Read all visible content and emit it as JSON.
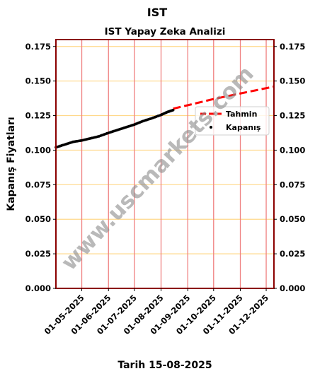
{
  "chart_data": {
    "type": "line",
    "suptitle": "IST",
    "title": "IST Yapay Zeka Analizi",
    "xlabel": "Tarih 15-08-2025",
    "ylabel": "Kapanış Fiyatları",
    "ylim": [
      0.0,
      0.18
    ],
    "yticks": [
      "0.000",
      "0.025",
      "0.050",
      "0.075",
      "0.100",
      "0.125",
      "0.150",
      "0.175"
    ],
    "xticks": [
      "01-05-2025",
      "01-06-2025",
      "01-07-2025",
      "01-08-2025",
      "01-09-2025",
      "01-10-2025",
      "01-11-2025",
      "01-12-2025"
    ],
    "xlim": [
      "2025-04-01",
      "2025-12-10"
    ],
    "grid": true,
    "legend_position": "right",
    "watermark": "www.uscmarkets.com",
    "colors": {
      "frame": "#8b0000",
      "grid_h": "#ffd88a",
      "grid_v": "#f08080",
      "forecast": "#ff0000",
      "actual": "#000000"
    },
    "series": [
      {
        "name": "Kapanış",
        "style": "dots",
        "points": [
          [
            "2025-04-01",
            0.102
          ],
          [
            "2025-04-11",
            0.104
          ],
          [
            "2025-04-21",
            0.106
          ],
          [
            "2025-05-01",
            0.107
          ],
          [
            "2025-05-11",
            0.1085
          ],
          [
            "2025-05-21",
            0.11
          ],
          [
            "2025-06-01",
            0.1125
          ],
          [
            "2025-06-11",
            0.1145
          ],
          [
            "2025-06-21",
            0.1165
          ],
          [
            "2025-07-01",
            0.1185
          ],
          [
            "2025-07-11",
            0.121
          ],
          [
            "2025-07-21",
            0.123
          ],
          [
            "2025-08-01",
            0.1255
          ],
          [
            "2025-08-08",
            0.1275
          ],
          [
            "2025-08-15",
            0.129
          ]
        ]
      },
      {
        "name": "Tahmin",
        "style": "dashed",
        "points": [
          [
            "2025-08-15",
            0.13
          ],
          [
            "2025-09-01",
            0.1325
          ],
          [
            "2025-10-01",
            0.137
          ],
          [
            "2025-11-01",
            0.141
          ],
          [
            "2025-12-10",
            0.146
          ]
        ]
      }
    ]
  }
}
